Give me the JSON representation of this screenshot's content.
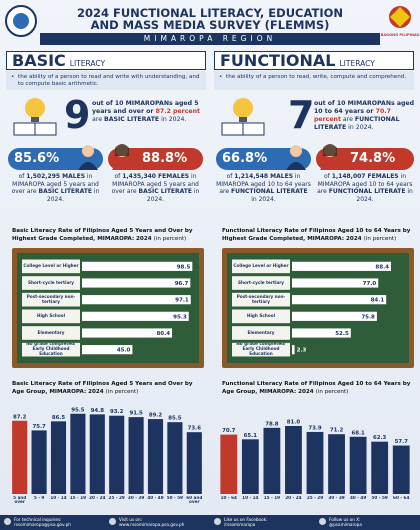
{
  "header": {
    "title_line1": "2024 FUNCTIONAL LITERACY, EDUCATION",
    "title_line2": "AND MASS MEDIA SURVEY (FLEMMS)",
    "region": "MIMAROPA REGION",
    "logo_text": "BAGONG PILIPINAS"
  },
  "basic": {
    "heading": "BASIC",
    "subheading": "LITERACY",
    "definition": "the ability of a person to read and write with understanding, and to compute basic arithmetic.",
    "big_number": "9",
    "summary": [
      "out of 10 MIMAROPANs aged 5 years and over or ",
      "87.2 percent",
      " are ",
      "BASIC LITERATE",
      " in 2024."
    ],
    "male": {
      "rate": "85.6%",
      "text": [
        "of ",
        "1,502,295 MALES",
        " in MIMAROPA aged 5 years and over are ",
        "BASIC LITERATE",
        " in 2024."
      ]
    },
    "female": {
      "rate": "88.8%",
      "text": [
        "of ",
        "1,435,340 FEMALES",
        " in MIMAROPA aged 5 years and over are ",
        "BASIC LITERATE",
        " in 2024."
      ]
    }
  },
  "functional": {
    "heading": "FUNCTIONAL",
    "subheading": "LITERACY",
    "definition": "the ability of a person to read, write, compute and comprehend.",
    "big_number": "7",
    "summary": [
      "out of 10 MIMAROPANs aged 10 to 64 years or ",
      "70.7 percent",
      " are ",
      "FUNCTIONAL LITERATE",
      " in 2024."
    ],
    "male": {
      "rate": "66.8%",
      "text": [
        "of ",
        "1,214,548 MALES",
        " in MIMAROPA aged 10 to 64 years are ",
        "FUNCTIONAL LITERATE",
        " in 2024."
      ]
    },
    "female": {
      "rate": "74.8%",
      "text": [
        "of ",
        "1,148,007 FEMALES",
        " in MIMAROPA aged 10 to 64 years are ",
        "FUNCTIONAL LITERATE",
        " in 2024."
      ]
    }
  },
  "chart_data": [
    {
      "type": "hbar",
      "title": "Basic Literacy Rate of Filipinos Aged 5 Years and Over by Highest Grade Completed, MIMAROPA: 2024",
      "unit": "(in percent)",
      "categories": [
        "College Level or Higher",
        "Short-cycle tertiary",
        "Post-secondary non-tertiary",
        "High School",
        "Elementary",
        "No grade completed/ Early Childhood Education"
      ],
      "values": [
        98.5,
        96.7,
        97.1,
        95.3,
        80.4,
        45.0
      ],
      "value_labels": [
        "98.5",
        "96.7",
        "97.1",
        "95.3",
        "80.4",
        "45.0"
      ],
      "xlim": [
        0,
        100
      ],
      "color": "#ffffff"
    },
    {
      "type": "hbar",
      "title": "Functional Literacy Rate of Filipinos Aged 10 to 64 Years by Highest Grade Completed, MIMAROPA: 2024",
      "unit": "(in percent)",
      "categories": [
        "College Level or Higher",
        "Short-cycle tertiary",
        "Post-secondary non-tertiary",
        "High School",
        "Elementary",
        "No grade completed/ Early Childhood Education"
      ],
      "values": [
        88.4,
        77.0,
        84.1,
        75.8,
        52.5,
        2.3
      ],
      "value_labels": [
        "88.4",
        "77.0",
        "84.1",
        "75.8",
        "52.5",
        "2.3"
      ],
      "xlim": [
        0,
        100
      ],
      "color": "#ffffff"
    },
    {
      "type": "vbar",
      "title": "Basic Literacy Rate of Filipinos Aged 5 Years and Over by Age Group, MIMAROPA: 2024",
      "unit": "(in percent)",
      "categories": [
        "5 and over",
        "5 - 9",
        "10 - 14",
        "15 - 19",
        "20 - 24",
        "25 - 29",
        "30 - 39",
        "40 - 49",
        "50 - 59",
        "60 and over"
      ],
      "values": [
        87.2,
        75.7,
        86.5,
        95.5,
        94.8,
        93.2,
        91.5,
        89.2,
        85.5,
        73.6
      ],
      "value_labels": [
        "87.2",
        "75.7",
        "86.5",
        "95.5",
        "94.8",
        "93.2",
        "91.5",
        "89.2",
        "85.5",
        "73.6"
      ],
      "ylim": [
        0,
        100
      ],
      "colors": [
        "#c0392b",
        "#1d3461",
        "#1d3461",
        "#1d3461",
        "#1d3461",
        "#1d3461",
        "#1d3461",
        "#1d3461",
        "#1d3461",
        "#1d3461"
      ]
    },
    {
      "type": "vbar",
      "title": "Functional Literacy Rate of Filipinos Aged 10 to 64 Years by Age Group, MIMAROPA: 2024",
      "unit": "(in percent)",
      "categories": [
        "10 - 64",
        "10 - 14",
        "15 - 19",
        "20 - 24",
        "25 - 29",
        "30 - 39",
        "40 - 49",
        "50 - 59",
        "60 - 64"
      ],
      "values": [
        70.7,
        65.1,
        78.8,
        81.0,
        73.9,
        71.2,
        68.1,
        62.3,
        57.7
      ],
      "value_labels": [
        "70.7",
        "65.1",
        "78.8",
        "81.0",
        "73.9",
        "71.2",
        "68.1",
        "62.3",
        "57.7"
      ],
      "ylim": [
        0,
        100
      ],
      "colors": [
        "#c0392b",
        "#1d3461",
        "#1d3461",
        "#1d3461",
        "#1d3461",
        "#1d3461",
        "#1d3461",
        "#1d3461",
        "#1d3461"
      ]
    }
  ],
  "footer": [
    {
      "label": "For technical inquiries:",
      "value": "rssomimaropa@psa.gov.ph"
    },
    {
      "label": "Visit us on:",
      "value": "www.rssomimaropa.psa.gov.ph"
    },
    {
      "label": "Like us on Facebook:",
      "value": "/rssomimaropa"
    },
    {
      "label": "Follow us on X:",
      "value": "@psamimaropa"
    }
  ]
}
